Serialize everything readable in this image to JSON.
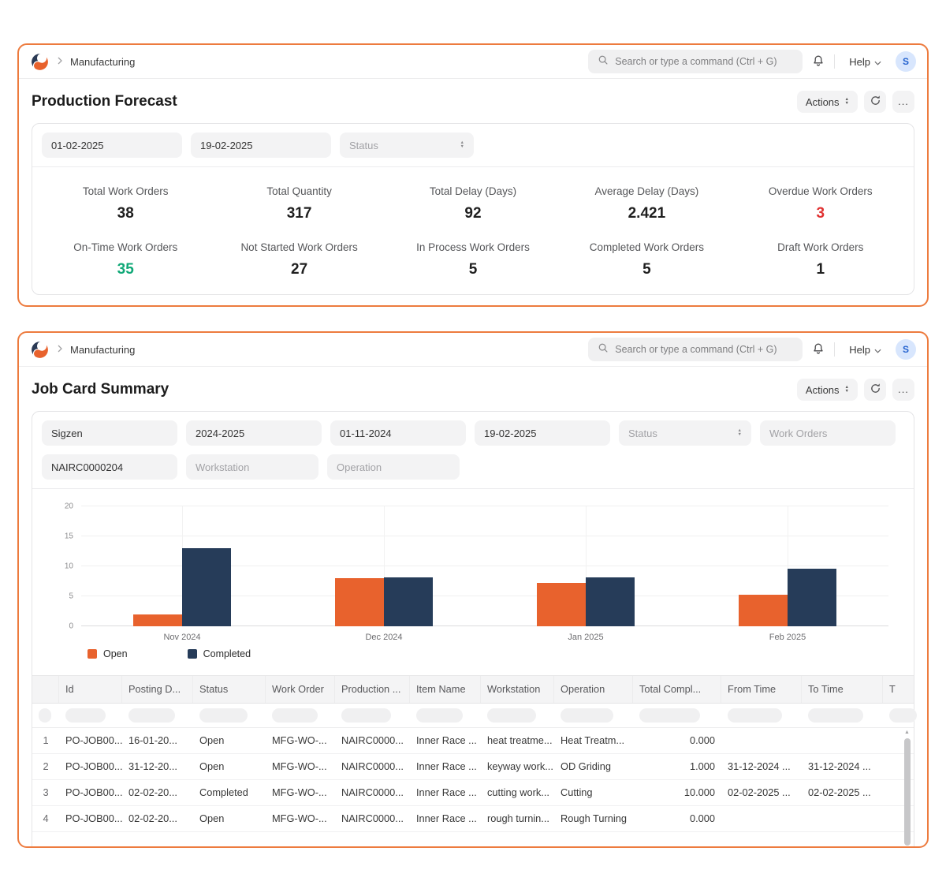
{
  "ui": {
    "more_label": "...",
    "panel_border": "#ed7b3e"
  },
  "navbar": {
    "breadcrumb": "Manufacturing",
    "search_placeholder": "Search or type a command (Ctrl + G)",
    "help_label": "Help",
    "avatar": "S"
  },
  "panel1": {
    "title": "Production Forecast",
    "actions_label": "Actions",
    "filters": [
      {
        "kind": "input",
        "value": "01-02-2025",
        "name": "from-date-filter"
      },
      {
        "kind": "input",
        "value": "19-02-2025",
        "name": "to-date-filter"
      },
      {
        "kind": "select",
        "placeholder": "Status",
        "name": "status-filter"
      }
    ],
    "stats": [
      {
        "label": "Total Work Orders",
        "value": "38"
      },
      {
        "label": "Total Quantity",
        "value": "317"
      },
      {
        "label": "Total Delay (Days)",
        "value": "92"
      },
      {
        "label": "Average Delay (Days)",
        "value": "2.421"
      },
      {
        "label": "Overdue Work Orders",
        "value": "3",
        "value_color": "#e03131"
      },
      {
        "label": "On-Time Work Orders",
        "value": "35",
        "value_color": "#10a877"
      },
      {
        "label": "Not Started Work Orders",
        "value": "27"
      },
      {
        "label": "In Process Work Orders",
        "value": "5"
      },
      {
        "label": "Completed Work Orders",
        "value": "5"
      },
      {
        "label": "Draft Work Orders",
        "value": "1"
      }
    ]
  },
  "panel2": {
    "title": "Job Card Summary",
    "actions_label": "Actions",
    "filters_row1": [
      {
        "kind": "input",
        "value": "Sigzen",
        "name": "company-filter"
      },
      {
        "kind": "input",
        "value": "2024-2025",
        "name": "fiscal-year-filter"
      },
      {
        "kind": "input",
        "value": "01-11-2024",
        "name": "from-date-filter"
      },
      {
        "kind": "input",
        "value": "19-02-2025",
        "name": "to-date-filter"
      },
      {
        "kind": "select",
        "placeholder": "Status",
        "name": "status-filter"
      },
      {
        "kind": "input",
        "placeholder": "Work Orders",
        "name": "work-orders-filter"
      }
    ],
    "filters_row2": [
      {
        "kind": "input",
        "value": "NAIRC0000204",
        "name": "item-code-filter"
      },
      {
        "kind": "input",
        "placeholder": "Workstation",
        "name": "workstation-filter"
      },
      {
        "kind": "input",
        "placeholder": "Operation",
        "name": "operation-filter"
      }
    ],
    "table": {
      "columns": [
        "",
        "Id",
        "Posting D...",
        "Status",
        "Work Order",
        "Production ...",
        "Item Name",
        "Workstation",
        "Operation",
        "Total Compl...",
        "From Time",
        "To Time",
        "T"
      ],
      "rows": [
        [
          "1",
          "PO-JOB00...",
          "16-01-20...",
          "Open",
          "MFG-WO-...",
          "NAIRC0000...",
          "Inner Race ...",
          "heat treatme...",
          "Heat Treatm...",
          "0.000",
          "",
          "",
          ""
        ],
        [
          "2",
          "PO-JOB00...",
          "31-12-20...",
          "Open",
          "MFG-WO-...",
          "NAIRC0000...",
          "Inner Race ...",
          "keyway work...",
          "OD Griding",
          "1.000",
          "31-12-2024 ...",
          "31-12-2024 ...",
          ""
        ],
        [
          "3",
          "PO-JOB00...",
          "02-02-20...",
          "Completed",
          "MFG-WO-...",
          "NAIRC0000...",
          "Inner Race ...",
          "cutting work...",
          "Cutting",
          "10.000",
          "02-02-2025 ...",
          "02-02-2025 ...",
          ""
        ],
        [
          "4",
          "PO-JOB00...",
          "02-02-20...",
          "Open",
          "MFG-WO-...",
          "NAIRC0000...",
          "Inner Race ...",
          "rough turnin...",
          "Rough Turning",
          "0.000",
          "",
          "",
          ""
        ]
      ]
    }
  },
  "chart_data": {
    "type": "bar",
    "categories": [
      "Nov 2024",
      "Dec 2024",
      "Jan 2025",
      "Feb 2025"
    ],
    "series": [
      {
        "name": "Open",
        "color": "#e8622d",
        "values": [
          2,
          8,
          7.3,
          5.2
        ]
      },
      {
        "name": "Completed",
        "color": "#263c59",
        "values": [
          13,
          8.2,
          8.2,
          9.6
        ]
      }
    ],
    "title": "",
    "xlabel": "",
    "ylabel": "",
    "ylim": [
      0,
      20
    ],
    "yticks": [
      0,
      5,
      10,
      15,
      20
    ],
    "grid": true,
    "legend_position": "bottom-left"
  }
}
